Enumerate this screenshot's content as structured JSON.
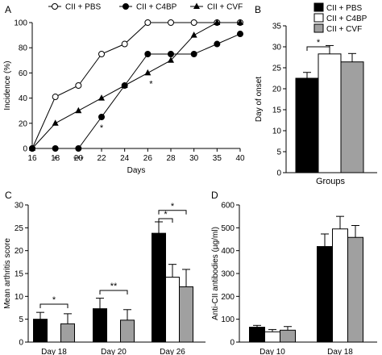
{
  "chart_data": [
    {
      "panel": "A",
      "type": "line",
      "xlabel": "Days",
      "ylabel": "Incidence (%)",
      "xlim": [
        16,
        40
      ],
      "ylim": [
        0,
        100
      ],
      "x_ticks": [
        16,
        18,
        20,
        22,
        24,
        26,
        28,
        30,
        35,
        40
      ],
      "y_ticks": [
        0,
        20,
        40,
        60,
        80,
        100
      ],
      "legend_position": "top",
      "series": [
        {
          "name": "CII + PBS",
          "marker": "open-circle",
          "points": [
            [
              16,
              0
            ],
            [
              18,
              41
            ],
            [
              20,
              50
            ],
            [
              22,
              75
            ],
            [
              24,
              83
            ],
            [
              26,
              100
            ],
            [
              28,
              100
            ],
            [
              30,
              100
            ],
            [
              35,
              100
            ],
            [
              40,
              100
            ]
          ]
        },
        {
          "name": "CII + C4BP",
          "marker": "filled-circle",
          "points": [
            [
              16,
              0
            ],
            [
              18,
              0
            ],
            [
              20,
              0
            ],
            [
              22,
              25
            ],
            [
              24,
              50
            ],
            [
              26,
              75
            ],
            [
              28,
              75
            ],
            [
              30,
              75
            ],
            [
              35,
              83
            ],
            [
              40,
              91
            ]
          ]
        },
        {
          "name": "CII + CVF",
          "marker": "triangle",
          "points": [
            [
              16,
              0
            ],
            [
              18,
              20
            ],
            [
              20,
              30
            ],
            [
              22,
              40
            ],
            [
              24,
              50
            ],
            [
              26,
              60
            ],
            [
              28,
              70
            ],
            [
              30,
              90
            ],
            [
              35,
              100
            ],
            [
              40,
              100
            ]
          ]
        }
      ],
      "annotations": [
        {
          "text": "*",
          "x": 18,
          "y": 0
        },
        {
          "text": "***",
          "x": 20,
          "y": 0
        },
        {
          "text": "*",
          "x": 22,
          "y": 25
        },
        {
          "text": "*",
          "x": 26,
          "y": 60
        }
      ]
    },
    {
      "panel": "B",
      "type": "bar",
      "xlabel": "Groups",
      "ylabel": "Day of onset",
      "ylim": [
        0,
        35
      ],
      "y_ticks": [
        0,
        5,
        10,
        15,
        20,
        25,
        30,
        35
      ],
      "legend_position": "top",
      "series": [
        {
          "name": "CII + PBS",
          "color": "#000000",
          "values": [
            22.5
          ],
          "errors": [
            1.4
          ]
        },
        {
          "name": "CII + C4BP",
          "color": "#ffffff",
          "values": [
            28.3
          ],
          "errors": [
            2.0
          ]
        },
        {
          "name": "CII + CVF",
          "color": "#a0a0a0",
          "values": [
            26.4
          ],
          "errors": [
            2.0
          ]
        }
      ],
      "significance": [
        {
          "text": "*",
          "between": [
            0,
            1
          ]
        }
      ]
    },
    {
      "panel": "C",
      "type": "bar",
      "ylabel": "Mean arthritis score",
      "categories": [
        "Day 18",
        "Day 20",
        "Day 26"
      ],
      "ylim": [
        0,
        30
      ],
      "y_ticks": [
        0,
        5,
        10,
        15,
        20,
        25,
        30
      ],
      "series": [
        {
          "name": "CII + PBS",
          "color": "#000000",
          "values": [
            5.0,
            7.3,
            23.8
          ],
          "errors": [
            1.5,
            2.3,
            2.5
          ]
        },
        {
          "name": "CII + C4BP",
          "color": "#ffffff",
          "values": [
            0,
            0,
            14.2
          ],
          "errors": [
            0,
            0,
            2.8
          ]
        },
        {
          "name": "CII + CVF",
          "color": "#a0a0a0",
          "values": [
            4.0,
            4.8,
            12.1
          ],
          "errors": [
            2.2,
            2.3,
            3.8
          ]
        }
      ],
      "significance": [
        {
          "category": 0,
          "text": "*",
          "between": [
            0,
            2
          ]
        },
        {
          "category": 1,
          "text": "**",
          "between": [
            0,
            2
          ]
        },
        {
          "category": 2,
          "text": "*",
          "between": [
            0,
            1
          ]
        },
        {
          "category": 2,
          "text": "*",
          "between": [
            0,
            2
          ]
        }
      ]
    },
    {
      "panel": "D",
      "type": "bar",
      "ylabel": "Anti-CII antibodies (µg/ml)",
      "categories": [
        "Day 10",
        "Day 18"
      ],
      "ylim": [
        0,
        600
      ],
      "y_ticks": [
        0,
        100,
        200,
        300,
        400,
        500,
        600
      ],
      "series": [
        {
          "name": "CII + PBS",
          "color": "#000000",
          "values": [
            65,
            418
          ],
          "errors": [
            8,
            55
          ]
        },
        {
          "name": "CII + C4BP",
          "color": "#ffffff",
          "values": [
            45,
            495
          ],
          "errors": [
            10,
            55
          ]
        },
        {
          "name": "CII + CVF",
          "color": "#a0a0a0",
          "values": [
            52,
            458
          ],
          "errors": [
            16,
            52
          ]
        }
      ]
    }
  ]
}
